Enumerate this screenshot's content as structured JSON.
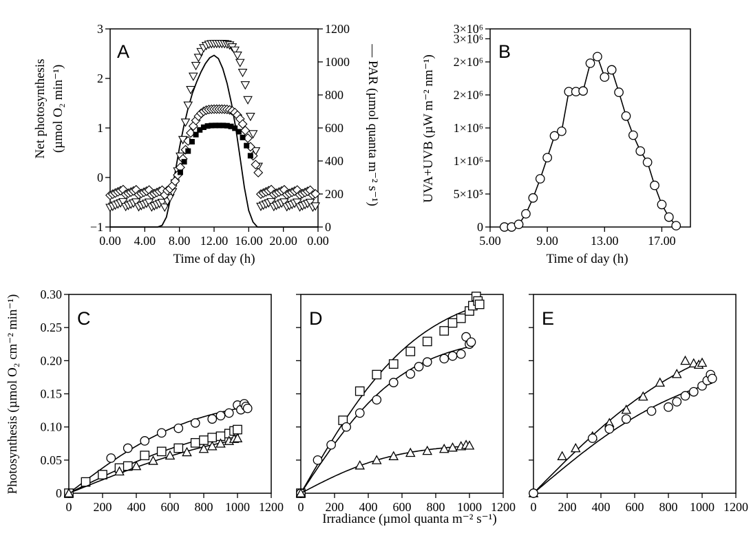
{
  "figure": {
    "panel_letters": [
      "A",
      "B",
      "C",
      "D",
      "E"
    ],
    "a_ylabel_line1": "Net photosynthesis",
    "a_ylabel_line2": "(µmol O₂ min⁻¹)",
    "a_y2label": "— PAR (µmol quanta m⁻² s⁻¹)",
    "a_xlabel": "Time of day (h)",
    "b_ylabel": "UVA+UVB (µW m⁻² nm⁻¹)",
    "b_xlabel": "Time of day (h)",
    "cde_ylabel": "Photosynthesis (µmol O₂ cm⁻² min⁻¹)",
    "cde_xlabel": "Irradiance (µmol quanta m⁻² s⁻¹)"
  },
  "chart_data": [
    {
      "panel": "A",
      "type": "scatter",
      "xlabel": "Time of day (h)",
      "ylabel": "Net photosynthesis (µmol O₂ min⁻¹)",
      "y2label": "PAR (µmol quanta m⁻² s⁻¹)",
      "xlim": [
        0,
        24
      ],
      "ylim": [
        -1,
        3
      ],
      "y2lim": [
        0,
        1200
      ],
      "x_ticks": [
        "0.00",
        "4.00",
        "8.00",
        "12.00",
        "16.00",
        "20.00",
        "0.00"
      ],
      "y_ticks": [
        "−1",
        "0",
        "1",
        "2",
        "3"
      ],
      "y2_ticks": [
        "0",
        "200",
        "400",
        "600",
        "800",
        "1000",
        "1200"
      ],
      "series": [
        {
          "marker": "triangle-down-open",
          "baseline": -0.55,
          "peak": 2.7
        },
        {
          "marker": "diamond-open",
          "baseline": -0.3,
          "peak": 1.38
        },
        {
          "marker": "square-filled",
          "baseline": -0.3,
          "peak": 1.05
        },
        {
          "name": "PAR",
          "marker": "line",
          "axis": "y2",
          "x": [
            0,
            5.5,
            6,
            6.5,
            7,
            7.5,
            8,
            8.5,
            9,
            9.5,
            10,
            10.5,
            11,
            11.5,
            12,
            12.5,
            13,
            13.5,
            14,
            14.5,
            15,
            15.5,
            16,
            16.5,
            17,
            24
          ],
          "y": [
            0,
            0,
            10,
            60,
            180,
            330,
            480,
            610,
            720,
            810,
            880,
            940,
            990,
            1025,
            1040,
            1020,
            960,
            870,
            750,
            600,
            420,
            240,
            100,
            30,
            0,
            0
          ]
        }
      ]
    },
    {
      "panel": "B",
      "type": "line",
      "xlabel": "Time of day (h)",
      "ylabel": "UVA+UVB (µW m⁻² nm⁻¹)",
      "xlim": [
        5,
        19
      ],
      "ylim": [
        0,
        3000000
      ],
      "x_ticks": [
        "5.00",
        "9.00",
        "13.00",
        "17.00"
      ],
      "y_ticks": [
        "0",
        "5×10⁵",
        "1×10⁶",
        "1×10⁶",
        "2×10⁶",
        "2×10⁶",
        "3×10⁶",
        "3×10⁶"
      ],
      "x": [
        6,
        6.5,
        7,
        7.5,
        8,
        8.5,
        9,
        9.5,
        10,
        10.5,
        11,
        11.5,
        12,
        12.5,
        13,
        13.5,
        14,
        14.5,
        15,
        15.5,
        16,
        16.5,
        17,
        17.5,
        18
      ],
      "y": [
        0,
        0,
        40000,
        200000,
        440000,
        730000,
        1050000,
        1380000,
        1450000,
        2050000,
        2050000,
        2060000,
        2480000,
        2580000,
        2270000,
        2380000,
        2040000,
        1680000,
        1390000,
        1150000,
        980000,
        630000,
        340000,
        150000,
        20000
      ],
      "marker": "circle-open"
    },
    {
      "panel": "C",
      "type": "scatter",
      "xlabel": "Irradiance (µmol quanta m⁻² s⁻¹)",
      "ylabel": "Photosynthesis (µmol O₂ cm⁻² min⁻¹)",
      "xlim": [
        0,
        1200
      ],
      "ylim": [
        0,
        0.3
      ],
      "x_ticks": [
        "0",
        "200",
        "400",
        "600",
        "800",
        "1000",
        "1200"
      ],
      "y_ticks": [
        "0",
        "0.05",
        "0.10",
        "0.15",
        "0.20",
        "0.25",
        "0.30"
      ],
      "series": [
        {
          "marker": "circle-open",
          "x": [
            0,
            250,
            350,
            450,
            550,
            650,
            750,
            850,
            900,
            950,
            1000,
            1020,
            1040,
            1050,
            1060
          ],
          "y": [
            0,
            0.053,
            0.068,
            0.079,
            0.091,
            0.098,
            0.106,
            0.112,
            0.117,
            0.121,
            0.133,
            0.126,
            0.135,
            0.131,
            0.128
          ]
        },
        {
          "marker": "square-open",
          "x": [
            0,
            100,
            200,
            300,
            350,
            450,
            550,
            650,
            750,
            800,
            850,
            900,
            950,
            980,
            1000
          ],
          "y": [
            0,
            0.017,
            0.028,
            0.038,
            0.041,
            0.057,
            0.063,
            0.068,
            0.076,
            0.08,
            0.084,
            0.086,
            0.09,
            0.094,
            0.096
          ]
        },
        {
          "marker": "triangle-open",
          "x": [
            0,
            300,
            400,
            500,
            600,
            700,
            800,
            850,
            900,
            950,
            980,
            1000
          ],
          "y": [
            0,
            0.033,
            0.041,
            0.049,
            0.057,
            0.062,
            0.067,
            0.071,
            0.075,
            0.079,
            0.082,
            0.083
          ]
        }
      ]
    },
    {
      "panel": "D",
      "type": "scatter",
      "xlabel": "Irradiance (µmol quanta m⁻² s⁻¹)",
      "ylabel": "Photosynthesis (µmol O₂ cm⁻² min⁻¹)",
      "xlim": [
        0,
        1200
      ],
      "ylim": [
        0,
        0.3
      ],
      "x_ticks": [
        "0",
        "200",
        "400",
        "600",
        "800",
        "1000",
        "1200"
      ],
      "y_ticks": [
        "0",
        "0.05",
        "0.10",
        "0.15",
        "0.20",
        "0.25",
        "0.30"
      ],
      "series": [
        {
          "marker": "square-open",
          "x": [
            0,
            250,
            350,
            450,
            550,
            650,
            750,
            850,
            900,
            950,
            1000,
            1020,
            1040,
            1050,
            1060
          ],
          "y": [
            0,
            0.11,
            0.154,
            0.179,
            0.195,
            0.214,
            0.229,
            0.245,
            0.257,
            0.264,
            0.275,
            0.283,
            0.297,
            0.29,
            0.285
          ]
        },
        {
          "marker": "circle-open",
          "x": [
            0,
            100,
            180,
            270,
            350,
            450,
            550,
            650,
            700,
            750,
            850,
            900,
            950,
            980,
            1000,
            1010
          ],
          "y": [
            0,
            0.05,
            0.073,
            0.1,
            0.121,
            0.141,
            0.167,
            0.18,
            0.191,
            0.198,
            0.203,
            0.207,
            0.21,
            0.236,
            0.225,
            0.228
          ]
        },
        {
          "marker": "triangle-open",
          "x": [
            0,
            350,
            450,
            550,
            650,
            750,
            850,
            900,
            950,
            980,
            1000
          ],
          "y": [
            0,
            0.042,
            0.05,
            0.056,
            0.061,
            0.064,
            0.067,
            0.069,
            0.071,
            0.073,
            0.072
          ]
        }
      ]
    },
    {
      "panel": "E",
      "type": "scatter",
      "xlabel": "Irradiance (µmol quanta m⁻² s⁻¹)",
      "ylabel": "Photosynthesis (µmol O₂ cm⁻² min⁻¹)",
      "xlim": [
        0,
        1200
      ],
      "ylim": [
        0,
        0.3
      ],
      "x_ticks": [
        "0",
        "200",
        "400",
        "600",
        "800",
        "1000",
        "1200"
      ],
      "y_ticks": [
        "0",
        "0.05",
        "0.10",
        "0.15",
        "0.20",
        "0.25",
        "0.30"
      ],
      "series": [
        {
          "marker": "triangle-open",
          "x": [
            0,
            170,
            250,
            350,
            450,
            550,
            650,
            750,
            850,
            900,
            950,
            980,
            1000
          ],
          "y": [
            0,
            0.056,
            0.068,
            0.086,
            0.106,
            0.126,
            0.146,
            0.167,
            0.18,
            0.2,
            0.196,
            0.194,
            0.197
          ]
        },
        {
          "marker": "circle-open",
          "x": [
            0,
            350,
            450,
            550,
            700,
            800,
            850,
            900,
            950,
            1000,
            1030,
            1050,
            1060
          ],
          "y": [
            0,
            0.083,
            0.097,
            0.112,
            0.124,
            0.13,
            0.138,
            0.147,
            0.153,
            0.162,
            0.17,
            0.179,
            0.173
          ]
        }
      ]
    }
  ]
}
